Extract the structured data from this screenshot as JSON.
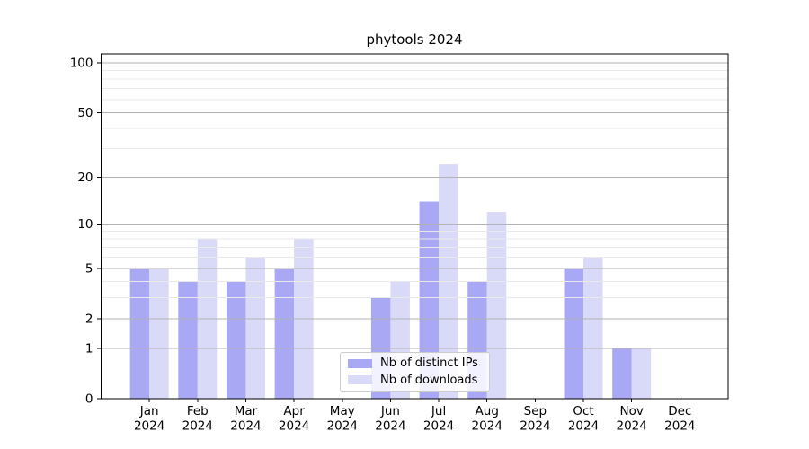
{
  "figure": {
    "background_color": "#ffffff"
  },
  "chart_data": {
    "type": "bar",
    "title": "phytools 2024",
    "xlabel": "",
    "ylabel": "",
    "categories": [
      "Jan\n2024",
      "Feb\n2024",
      "Mar\n2024",
      "Apr\n2024",
      "May\n2024",
      "Jun\n2024",
      "Jul\n2024",
      "Aug\n2024",
      "Sep\n2024",
      "Oct\n2024",
      "Nov\n2024",
      "Dec\n2024"
    ],
    "series": [
      {
        "name": "Nb of distinct IPs",
        "color": "#a8a8f4",
        "values": [
          5,
          4,
          4,
          5,
          0,
          3,
          14,
          4,
          0,
          5,
          1,
          0
        ]
      },
      {
        "name": "Nb of downloads",
        "color": "#d9d9f8",
        "values": [
          5,
          8,
          6,
          8,
          0,
          4,
          24,
          12,
          0,
          6,
          1,
          0
        ]
      }
    ],
    "yscale": "log1p",
    "ylim": [
      0,
      113
    ],
    "yticks": [
      0,
      1,
      2,
      5,
      10,
      20,
      50,
      100
    ],
    "yticks_minor": [
      3,
      4,
      6,
      7,
      8,
      9,
      30,
      40,
      60,
      70,
      80,
      90
    ],
    "grid": {
      "axis": "y",
      "major_color": "#b3b3b3",
      "minor_color": "#e9e9e9",
      "drawn_above_bars": true
    },
    "axis_color": "#000000",
    "legend": {
      "position": "lower center",
      "entries": [
        "Nb of distinct IPs",
        "Nb of downloads"
      ]
    }
  }
}
